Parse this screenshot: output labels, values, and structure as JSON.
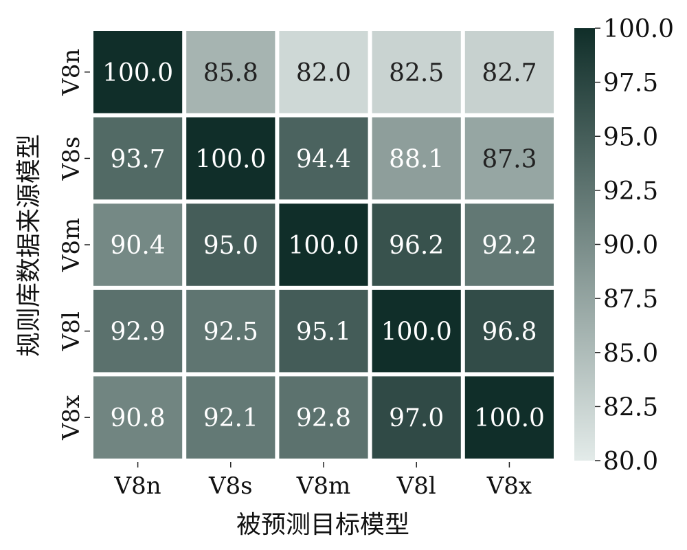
{
  "chart_data": {
    "type": "heatmap",
    "xlabel": "被预测目标模型",
    "ylabel": "规则库数据来源模型",
    "x_categories": [
      "V8n",
      "V8s",
      "V8m",
      "V8l",
      "V8x"
    ],
    "y_categories": [
      "V8n",
      "V8s",
      "V8m",
      "V8l",
      "V8x"
    ],
    "values": [
      [
        100.0,
        85.8,
        82.0,
        82.5,
        82.7
      ],
      [
        93.7,
        100.0,
        94.4,
        88.1,
        87.3
      ],
      [
        90.4,
        95.0,
        100.0,
        96.2,
        92.2
      ],
      [
        92.9,
        92.5,
        95.1,
        100.0,
        96.8
      ],
      [
        90.8,
        92.1,
        92.8,
        97.0,
        100.0
      ]
    ],
    "value_labels": [
      [
        "100.0",
        "85.8",
        "82.0",
        "82.5",
        "82.7"
      ],
      [
        "93.7",
        "100.0",
        "94.4",
        "88.1",
        "87.3"
      ],
      [
        "90.4",
        "95.0",
        "100.0",
        "96.2",
        "92.2"
      ],
      [
        "92.9",
        "92.5",
        "95.1",
        "100.0",
        "96.8"
      ],
      [
        "90.8",
        "92.1",
        "92.8",
        "97.0",
        "100.0"
      ]
    ],
    "colorbar": {
      "min": 80.0,
      "max": 100.0,
      "ticks": [
        80.0,
        82.5,
        85.0,
        87.5,
        90.0,
        92.5,
        95.0,
        97.5,
        100.0
      ],
      "tick_labels": [
        "80.0",
        "82.5",
        "85.0",
        "87.5",
        "90.0",
        "92.5",
        "95.0",
        "97.5",
        "100.0"
      ],
      "color_low": "#e3ebe9",
      "color_high": "#102e29"
    },
    "grid_color": "#ffffff",
    "text_dark": "#222222",
    "text_light": "#ffffff"
  }
}
